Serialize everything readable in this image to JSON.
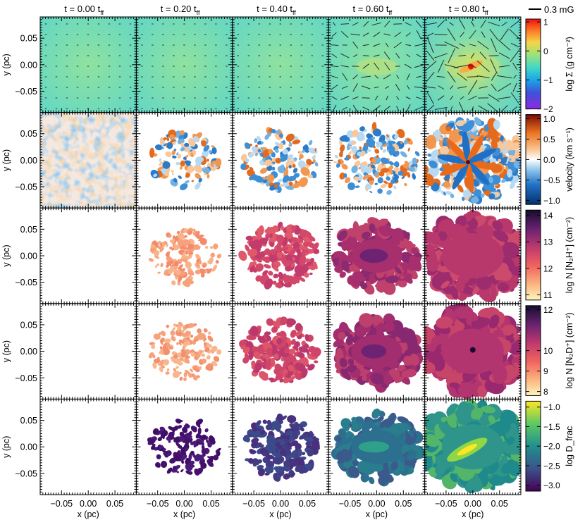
{
  "chart_data": {
    "type": "heatmap",
    "columns": [
      {
        "label": "t = 0.00 t",
        "sub": "ff"
      },
      {
        "label": "t = 0.20 t",
        "sub": "ff"
      },
      {
        "label": "t = 0.40 t",
        "sub": "ff"
      },
      {
        "label": "t = 0.60 t",
        "sub": "ff"
      },
      {
        "label": "t = 0.80 t",
        "sub": "ff"
      }
    ],
    "xlabel": "x (pc)",
    "ylabel": "y (pc)",
    "xticks": [
      "−0.05",
      "0.00",
      "0.05"
    ],
    "yticks": [
      "0.05",
      "0.00",
      "−0.05"
    ],
    "tick_values": [
      -0.05,
      0.0,
      0.05
    ],
    "xlim": [
      -0.09,
      0.09
    ],
    "ylim": [
      -0.09,
      0.09
    ],
    "field_legend": "0.3 mG",
    "rows": [
      {
        "quantity": "log Σ (g cm⁻²)",
        "colormap": "rainbow",
        "cbar_ticks": [
          "1",
          "0",
          "−1",
          "−2"
        ],
        "cbar_range": [
          -2.0,
          1.1
        ],
        "cbar_tick_values": [
          1,
          0,
          -1,
          -2
        ]
      },
      {
        "quantity": "velocity (km s⁻¹)",
        "colormap": "diverging blue-white-red",
        "cbar_ticks": [
          "1.0",
          "0.5",
          "0.0",
          "−0.5",
          "−1.0"
        ],
        "cbar_range": [
          -1.1,
          1.1
        ],
        "cbar_tick_values": [
          1.0,
          0.5,
          0.0,
          -0.5,
          -1.0
        ]
      },
      {
        "quantity": "log N [N₂H⁺] (cm⁻²)",
        "colormap": "magma",
        "cbar_ticks": [
          "14",
          "13",
          "12",
          "11"
        ],
        "cbar_range": [
          10.8,
          14.2
        ],
        "cbar_tick_values": [
          14,
          13,
          12,
          11
        ]
      },
      {
        "quantity": "log N [N₂D⁺] (cm⁻²)",
        "colormap": "magma",
        "cbar_ticks": [
          "12",
          "10",
          "9",
          "8"
        ],
        "cbar_range": [
          7.8,
          12.2
        ],
        "cbar_tick_values": [
          12,
          10,
          9,
          8
        ]
      },
      {
        "quantity": "log D_frac",
        "colormap": "viridis",
        "cbar_ticks": [
          "−1.0",
          "−1.5",
          "−2.0",
          "−2.5",
          "−3.0"
        ],
        "cbar_range": [
          -3.15,
          -0.85
        ],
        "cbar_tick_values": [
          -1.0,
          -1.5,
          -2.0,
          -2.5,
          -3.0
        ]
      }
    ]
  }
}
